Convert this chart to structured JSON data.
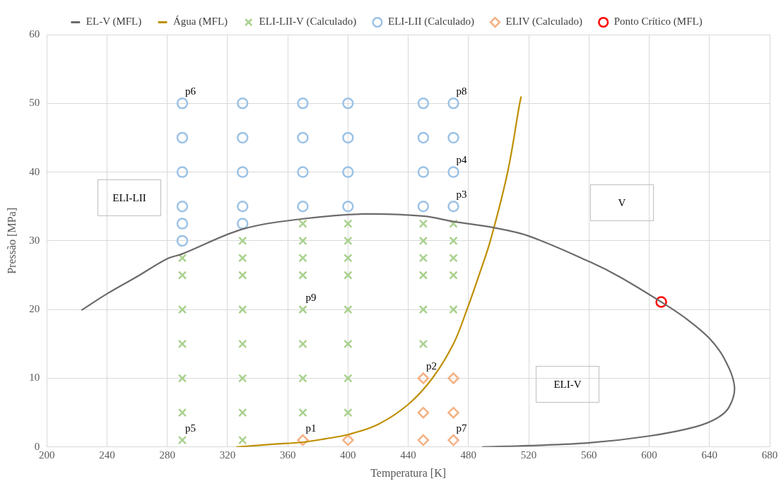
{
  "chart_data": {
    "type": "scatter",
    "xlabel": "Temperatura [K]",
    "ylabel": "Pressão [MPa]",
    "xlim": [
      200,
      680
    ],
    "xticks": [
      200,
      240,
      280,
      320,
      360,
      400,
      440,
      480,
      520,
      560,
      600,
      640,
      680
    ],
    "ylim": [
      0,
      60
    ],
    "yticks": [
      0,
      10,
      20,
      30,
      40,
      50,
      60
    ],
    "grid": true,
    "legend": "top",
    "series": [
      {
        "name": "EL-V (MFL)",
        "type": "line",
        "color": "#6e6a6b",
        "marker": "none",
        "x": [
          223,
          240,
          260,
          280,
          290,
          330,
          370,
          410,
          450,
          470,
          497,
          520,
          561,
          580,
          608,
          625,
          640,
          650,
          656.6,
          653,
          645,
          630,
          600,
          560,
          520,
          489
        ],
        "values": [
          19.9,
          22.3,
          24.8,
          27.4,
          28.1,
          31.7,
          33.2,
          33.9,
          33.6,
          32.8,
          31.9,
          30.7,
          26.9,
          24.8,
          21.1,
          18.6,
          15.8,
          12.8,
          8.8,
          5.8,
          4.2,
          2.9,
          1.6,
          0.6,
          0.2,
          0
        ]
      },
      {
        "name": "Água (MFL)",
        "type": "line",
        "color": "#bf8f00",
        "marker": "none",
        "x": [
          325.8,
          350,
          370,
          385,
          400,
          420,
          440,
          456,
          470,
          479,
          487,
          494.5,
          506,
          514,
          515
        ],
        "values": [
          0,
          0.4,
          0.7,
          1.2,
          1.8,
          3.3,
          6.2,
          10,
          15,
          20,
          25,
          30,
          40,
          50,
          51
        ]
      },
      {
        "name": "ELI-LII-V (Calculado)",
        "color": "#a9d18e",
        "marker": "cross",
        "x": [
          290,
          290,
          290,
          290,
          290,
          290,
          290,
          330,
          330,
          330,
          330,
          330,
          330,
          330,
          330,
          370,
          370,
          370,
          370,
          370,
          370,
          370,
          370,
          400,
          400,
          400,
          400,
          400,
          400,
          400,
          400,
          450,
          450,
          450,
          450,
          450,
          450,
          470,
          470,
          470,
          470,
          470
        ],
        "values": [
          1,
          5,
          10,
          15,
          20,
          25,
          27.5,
          1,
          5,
          10,
          15,
          20,
          25,
          27.5,
          30,
          5,
          10,
          15,
          20,
          25,
          27.5,
          30,
          32.5,
          5,
          10,
          15,
          20,
          25,
          27.5,
          30,
          32.5,
          15,
          20,
          25,
          27.5,
          30,
          32.5,
          20,
          25,
          27.5,
          30,
          32.5
        ]
      },
      {
        "name": "ELI-LII (Calculado)",
        "color": "#9dc3e6",
        "marker": "circle",
        "x": [
          290,
          290,
          290,
          290,
          290,
          290,
          330,
          330,
          330,
          330,
          330,
          370,
          370,
          370,
          370,
          400,
          400,
          400,
          400,
          450,
          450,
          450,
          450,
          470,
          470,
          470,
          470
        ],
        "values": [
          30,
          32.5,
          35,
          40,
          45,
          50,
          32.5,
          35,
          40,
          45,
          50,
          35,
          40,
          45,
          50,
          35,
          40,
          45,
          50,
          35,
          40,
          45,
          50,
          35,
          40,
          45,
          50
        ]
      },
      {
        "name": "ELIV (Calculado)",
        "color": "#f4b183",
        "marker": "diamond",
        "x": [
          370,
          400,
          450,
          450,
          450,
          470,
          470,
          470
        ],
        "values": [
          1,
          1,
          1,
          5,
          10,
          1,
          5,
          10
        ]
      },
      {
        "name": "Ponto Crítico (MFL)",
        "color": "#ff0000",
        "marker": "circle",
        "x": [
          608
        ],
        "values": [
          21.1
        ]
      }
    ],
    "annotations": [
      {
        "text": "p6",
        "x": 290,
        "y": 50
      },
      {
        "text": "p8",
        "x": 470,
        "y": 50
      },
      {
        "text": "p4",
        "x": 470,
        "y": 40
      },
      {
        "text": "p3",
        "x": 470,
        "y": 35
      },
      {
        "text": "p9",
        "x": 370,
        "y": 20
      },
      {
        "text": "p5",
        "x": 290,
        "y": 1
      },
      {
        "text": "p1",
        "x": 370,
        "y": 1
      },
      {
        "text": "p2",
        "x": 450,
        "y": 10
      },
      {
        "text": "p7",
        "x": 470,
        "y": 1
      },
      "ELI-LII",
      "V",
      "ELI-V"
    ]
  }
}
